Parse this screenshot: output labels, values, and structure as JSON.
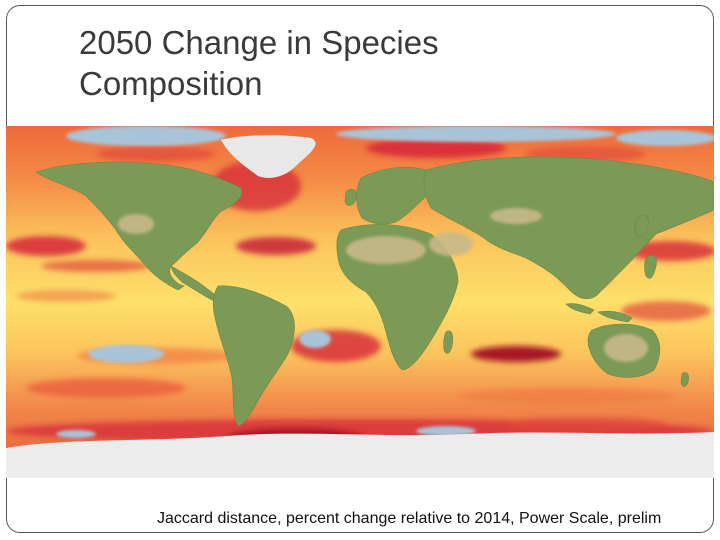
{
  "slide": {
    "title_lines": [
      "2050 Change in Species",
      "Composition"
    ],
    "caption": "Jaccard distance, percent change relative to 2014, Power Scale, prelim"
  },
  "map": {
    "projection": "equirectangular world",
    "palette": {
      "ocean_low": "#fde76a",
      "ocean_mid": "#f7b04a",
      "ocean_high": "#ee6a3c",
      "ocean_very_high": "#d6273a",
      "ocean_extreme": "#a30f22",
      "land": "#7b9a56",
      "desert": "#c9b98a",
      "ice": "#e8e8e8",
      "no_data": "#a9c4d8"
    }
  }
}
